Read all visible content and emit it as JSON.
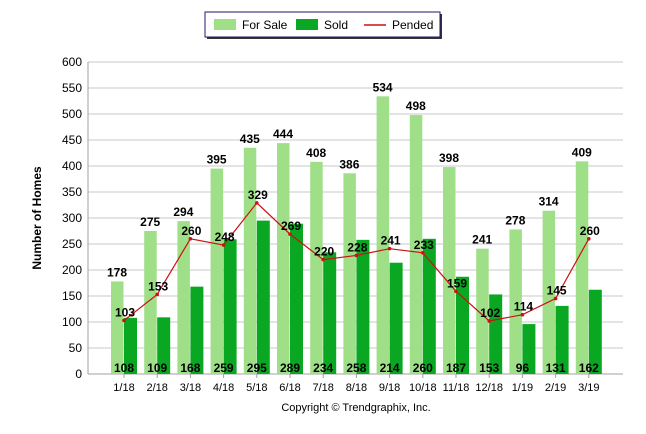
{
  "chart_data": {
    "type": "bar",
    "title": "",
    "xlabel": "",
    "ylabel": "Number of Homes",
    "ylim": [
      0,
      600
    ],
    "yticks": [
      0,
      50,
      100,
      150,
      200,
      250,
      300,
      350,
      400,
      450,
      500,
      550,
      600
    ],
    "grid": true,
    "legend_position": "top-center",
    "categories": [
      "1/18",
      "2/18",
      "3/18",
      "4/18",
      "5/18",
      "6/18",
      "7/18",
      "8/18",
      "9/18",
      "10/18",
      "11/18",
      "12/18",
      "1/19",
      "2/19",
      "3/19"
    ],
    "series": [
      {
        "name": "For Sale",
        "kind": "bar",
        "color": "#9fdf88",
        "values": [
          178,
          275,
          294,
          395,
          435,
          444,
          408,
          386,
          534,
          498,
          398,
          241,
          278,
          314,
          409
        ]
      },
      {
        "name": "Sold",
        "kind": "bar",
        "color": "#0aa822",
        "values": [
          108,
          109,
          168,
          259,
          295,
          289,
          234,
          258,
          214,
          260,
          187,
          153,
          96,
          131,
          162
        ]
      },
      {
        "name": "Pended",
        "kind": "line",
        "color": "#cc1111",
        "values": [
          103,
          153,
          260,
          248,
          329,
          269,
          220,
          228,
          241,
          233,
          159,
          102,
          114,
          145,
          260
        ]
      }
    ]
  },
  "footer": {
    "copyright": "Copyright © Trendgraphix, Inc."
  }
}
